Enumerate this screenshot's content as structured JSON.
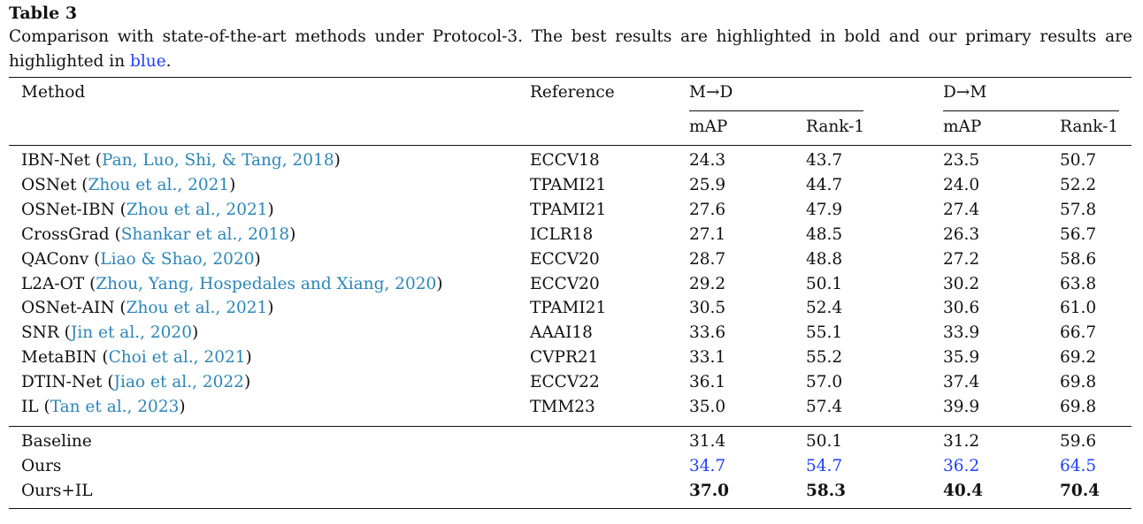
{
  "table": {
    "label": "Table 3",
    "caption_main": "Comparison with state-of-the-art methods under Protocol-3. The best results are highlighted in bold and our primary results are highlighted in",
    "caption_blue_word": "blue",
    "caption_end": ".",
    "headers": {
      "method": "Method",
      "reference": "Reference",
      "group1": "M→D",
      "group2": "D→M",
      "map": "mAP",
      "rank1": "Rank-1"
    },
    "rows": [
      {
        "method": "IBN-Net",
        "cite": "Pan, Luo, Shi, & Tang, 2018",
        "ref": "ECCV18",
        "md_map": "24.3",
        "md_rank1": "43.7",
        "dm_map": "23.5",
        "dm_rank1": "50.7"
      },
      {
        "method": "OSNet",
        "cite": "Zhou et al., 2021",
        "ref": "TPAMI21",
        "md_map": "25.9",
        "md_rank1": "44.7",
        "dm_map": "24.0",
        "dm_rank1": "52.2"
      },
      {
        "method": "OSNet-IBN",
        "cite": "Zhou et al., 2021",
        "ref": "TPAMI21",
        "md_map": "27.6",
        "md_rank1": "47.9",
        "dm_map": "27.4",
        "dm_rank1": "57.8"
      },
      {
        "method": "CrossGrad",
        "cite": "Shankar et al., 2018",
        "ref": "ICLR18",
        "md_map": "27.1",
        "md_rank1": "48.5",
        "dm_map": "26.3",
        "dm_rank1": "56.7"
      },
      {
        "method": "QAConv",
        "cite": "Liao & Shao, 2020",
        "ref": "ECCV20",
        "md_map": "28.7",
        "md_rank1": "48.8",
        "dm_map": "27.2",
        "dm_rank1": "58.6"
      },
      {
        "method": "L2A-OT",
        "cite": "Zhou, Yang, Hospedales and Xiang, 2020",
        "ref": "ECCV20",
        "md_map": "29.2",
        "md_rank1": "50.1",
        "dm_map": "30.2",
        "dm_rank1": "63.8"
      },
      {
        "method": "OSNet-AIN",
        "cite": "Zhou et al., 2021",
        "ref": "TPAMI21",
        "md_map": "30.5",
        "md_rank1": "52.4",
        "dm_map": "30.6",
        "dm_rank1": "61.0"
      },
      {
        "method": "SNR",
        "cite": "Jin et al., 2020",
        "ref": "AAAI18",
        "md_map": "33.6",
        "md_rank1": "55.1",
        "dm_map": "33.9",
        "dm_rank1": "66.7"
      },
      {
        "method": "MetaBIN",
        "cite": "Choi et al., 2021",
        "ref": "CVPR21",
        "md_map": "33.1",
        "md_rank1": "55.2",
        "dm_map": "35.9",
        "dm_rank1": "69.2"
      },
      {
        "method": "DTIN-Net",
        "cite": "Jiao et al., 2022",
        "ref": "ECCV22",
        "md_map": "36.1",
        "md_rank1": "57.0",
        "dm_map": "37.4",
        "dm_rank1": "69.8"
      },
      {
        "method": "IL",
        "cite": "Tan et al., 2023",
        "ref": "TMM23",
        "md_map": "35.0",
        "md_rank1": "57.4",
        "dm_map": "39.9",
        "dm_rank1": "69.8"
      }
    ],
    "ours": [
      {
        "method": "Baseline",
        "style": "normal",
        "md_map": "31.4",
        "md_rank1": "50.1",
        "dm_map": "31.2",
        "dm_rank1": "59.6"
      },
      {
        "method": "Ours",
        "style": "blue",
        "md_map": "34.7",
        "md_rank1": "54.7",
        "dm_map": "36.2",
        "dm_rank1": "64.5"
      },
      {
        "method": "Ours+IL",
        "style": "bold",
        "md_map": "37.0",
        "md_rank1": "58.3",
        "dm_map": "40.4",
        "dm_rank1": "70.4"
      }
    ],
    "colors": {
      "citation": "#2b86b8",
      "highlight_blue": "#1f3fff",
      "text": "#111111"
    }
  }
}
